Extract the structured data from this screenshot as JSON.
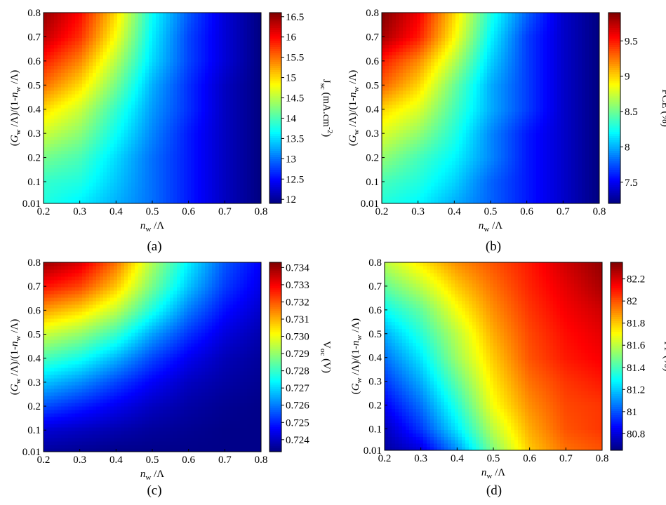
{
  "figure": {
    "panels": [
      "(a)",
      "(b)",
      "(c)",
      "(d)"
    ]
  },
  "chart_data": [
    {
      "type": "heatmap",
      "panel_label": "(a)",
      "xlabel": "n_w/Λ",
      "ylabel": "(G_w/Λ)/(1-n_w/Λ)",
      "colorbar_label": "J_sc (mA.cm^-2)",
      "x_ticks": [
        "0.2",
        "0.3",
        "0.4",
        "0.5",
        "0.6",
        "0.7",
        "0.8"
      ],
      "y_ticks": [
        "0.01",
        "0.1",
        "0.2",
        "0.3",
        "0.4",
        "0.5",
        "0.6",
        "0.7",
        "0.8"
      ],
      "xlim": [
        0.2,
        0.8
      ],
      "ylim": [
        0.01,
        0.8
      ],
      "colorbar_ticks": [
        "16.5",
        "16",
        "15.5",
        "15",
        "14.5",
        "14",
        "13.5",
        "13",
        "12.5",
        "12"
      ],
      "colorbar_range": [
        11.9,
        16.6
      ],
      "colormap": "jet",
      "x": [
        0.2,
        0.3,
        0.4,
        0.5,
        0.6,
        0.7,
        0.8
      ],
      "y": [
        0.01,
        0.1,
        0.2,
        0.3,
        0.4,
        0.5,
        0.6,
        0.7,
        0.8
      ],
      "z": [
        [
          13.8,
          13.6,
          13.3,
          13.0,
          12.6,
          12.2,
          11.9
        ],
        [
          13.9,
          13.8,
          13.4,
          13.0,
          12.6,
          12.2,
          11.9
        ],
        [
          14.2,
          14.0,
          13.5,
          13.0,
          12.6,
          12.2,
          11.9
        ],
        [
          14.6,
          14.3,
          13.7,
          13.1,
          12.6,
          12.2,
          11.9
        ],
        [
          15.0,
          14.6,
          13.9,
          13.2,
          12.7,
          12.2,
          11.9
        ],
        [
          15.5,
          15.0,
          14.2,
          13.3,
          12.7,
          12.2,
          11.9
        ],
        [
          15.9,
          15.4,
          14.5,
          13.5,
          12.8,
          12.3,
          11.9
        ],
        [
          16.3,
          15.8,
          14.8,
          13.6,
          12.8,
          12.3,
          11.9
        ],
        [
          16.5,
          16.0,
          15.0,
          13.7,
          12.9,
          12.3,
          11.9
        ]
      ]
    },
    {
      "type": "heatmap",
      "panel_label": "(b)",
      "xlabel": "n_w/Λ",
      "ylabel": "(G_w/Λ)/(1-n_w/Λ)",
      "colorbar_label": "PCE (%)",
      "x_ticks": [
        "0.2",
        "0.3",
        "0.4",
        "0.5",
        "0.6",
        "0.7",
        "0.8"
      ],
      "y_ticks": [
        "0.01",
        "0.1",
        "0.2",
        "0.3",
        "0.4",
        "0.5",
        "0.6",
        "0.7",
        "0.8"
      ],
      "xlim": [
        0.2,
        0.8
      ],
      "ylim": [
        0.01,
        0.8
      ],
      "colorbar_ticks": [
        "9.5",
        "9",
        "8.5",
        "8",
        "7.5"
      ],
      "colorbar_range": [
        7.2,
        9.9
      ],
      "colormap": "jet",
      "x": [
        0.2,
        0.3,
        0.4,
        0.5,
        0.6,
        0.7,
        0.8
      ],
      "y": [
        0.01,
        0.1,
        0.2,
        0.3,
        0.4,
        0.5,
        0.6,
        0.7,
        0.8
      ],
      "z": [
        [
          8.3,
          8.2,
          8.0,
          7.8,
          7.6,
          7.4,
          7.2
        ],
        [
          8.4,
          8.3,
          8.1,
          7.8,
          7.6,
          7.4,
          7.2
        ],
        [
          8.6,
          8.4,
          8.2,
          7.9,
          7.6,
          7.4,
          7.2
        ],
        [
          8.8,
          8.6,
          8.3,
          7.9,
          7.6,
          7.4,
          7.2
        ],
        [
          9.0,
          8.8,
          8.4,
          8.0,
          7.7,
          7.4,
          7.2
        ],
        [
          9.3,
          9.0,
          8.5,
          8.0,
          7.7,
          7.4,
          7.2
        ],
        [
          9.5,
          9.2,
          8.7,
          8.1,
          7.7,
          7.4,
          7.2
        ],
        [
          9.8,
          9.5,
          8.9,
          8.2,
          7.7,
          7.4,
          7.2
        ],
        [
          9.9,
          9.6,
          9.0,
          8.3,
          7.8,
          7.4,
          7.2
        ]
      ]
    },
    {
      "type": "heatmap",
      "panel_label": "(c)",
      "xlabel": "n_w/Λ",
      "ylabel": "(G_w/Λ)/(1-n_w/Λ)",
      "colorbar_label": "V_oc (V)",
      "x_ticks": [
        "0.2",
        "0.3",
        "0.4",
        "0.5",
        "0.6",
        "0.7",
        "0.8"
      ],
      "y_ticks": [
        "0.01",
        "0.1",
        "0.2",
        "0.3",
        "0.4",
        "0.5",
        "0.6",
        "0.7",
        "0.8"
      ],
      "xlim": [
        0.2,
        0.8
      ],
      "ylim": [
        0.01,
        0.8
      ],
      "colorbar_ticks": [
        "0.734",
        "0.733",
        "0.732",
        "0.731",
        "0.730",
        "0.729",
        "0.728",
        "0.727",
        "0.726",
        "0.725",
        "0.724"
      ],
      "colorbar_range": [
        0.7233,
        0.7343
      ],
      "colormap": "jet",
      "x": [
        0.2,
        0.3,
        0.4,
        0.5,
        0.6,
        0.7,
        0.8
      ],
      "y": [
        0.01,
        0.1,
        0.2,
        0.3,
        0.4,
        0.5,
        0.6,
        0.7,
        0.8
      ],
      "z": [
        [
          0.7236,
          0.7235,
          0.7234,
          0.7234,
          0.7234,
          0.7234,
          0.7234
        ],
        [
          0.7242,
          0.724,
          0.7238,
          0.7236,
          0.7235,
          0.7234,
          0.7234
        ],
        [
          0.7255,
          0.725,
          0.7245,
          0.724,
          0.7237,
          0.7235,
          0.7234
        ],
        [
          0.7268,
          0.7262,
          0.7254,
          0.7246,
          0.724,
          0.7237,
          0.7235
        ],
        [
          0.7282,
          0.7276,
          0.7266,
          0.7254,
          0.7245,
          0.7239,
          0.7236
        ],
        [
          0.7296,
          0.729,
          0.728,
          0.7264,
          0.7252,
          0.7243,
          0.7238
        ],
        [
          0.7312,
          0.7306,
          0.7295,
          0.7277,
          0.726,
          0.7248,
          0.7241
        ],
        [
          0.7328,
          0.7322,
          0.7308,
          0.7287,
          0.7268,
          0.7253,
          0.7244
        ],
        [
          0.734,
          0.7333,
          0.7317,
          0.7293,
          0.7273,
          0.7256,
          0.7246
        ]
      ]
    },
    {
      "type": "heatmap",
      "panel_label": "(d)",
      "xlabel": "n_w/Λ",
      "ylabel": "(G_w/Λ)/(1-n_w/Λ)",
      "colorbar_label": "FF (%)",
      "x_ticks": [
        "0.2",
        "0.3",
        "0.4",
        "0.5",
        "0.6",
        "0.7",
        "0.8"
      ],
      "y_ticks": [
        "0.01",
        "0.1",
        "0.2",
        "0.3",
        "0.4",
        "0.5",
        "0.6",
        "0.7",
        "0.8"
      ],
      "xlim": [
        0.2,
        0.8
      ],
      "ylim": [
        0.01,
        0.8
      ],
      "colorbar_ticks": [
        "82.2",
        "82",
        "81.8",
        "81.6",
        "81.4",
        "81.2",
        "81",
        "80.8"
      ],
      "colorbar_range": [
        80.65,
        82.35
      ],
      "colormap": "jet",
      "x": [
        0.2,
        0.3,
        0.4,
        0.5,
        0.6,
        0.7,
        0.8
      ],
      "y": [
        0.01,
        0.1,
        0.2,
        0.3,
        0.4,
        0.5,
        0.6,
        0.7,
        0.8
      ],
      "z": [
        [
          80.7,
          80.8,
          81.1,
          81.5,
          81.8,
          81.95,
          82.0
        ],
        [
          80.75,
          80.95,
          81.25,
          81.6,
          81.85,
          82.0,
          82.05
        ],
        [
          80.85,
          81.05,
          81.35,
          81.7,
          81.9,
          82.02,
          82.05
        ],
        [
          80.95,
          81.15,
          81.45,
          81.75,
          81.95,
          82.05,
          82.1
        ],
        [
          81.05,
          81.25,
          81.55,
          81.8,
          82.0,
          82.1,
          82.15
        ],
        [
          81.15,
          81.35,
          81.6,
          81.85,
          82.02,
          82.12,
          82.18
        ],
        [
          81.3,
          81.45,
          81.7,
          81.9,
          82.05,
          82.15,
          82.22
        ],
        [
          81.45,
          81.6,
          81.8,
          81.95,
          82.08,
          82.18,
          82.28
        ],
        [
          81.6,
          81.75,
          81.9,
          82.0,
          82.1,
          82.22,
          82.32
        ]
      ]
    }
  ]
}
